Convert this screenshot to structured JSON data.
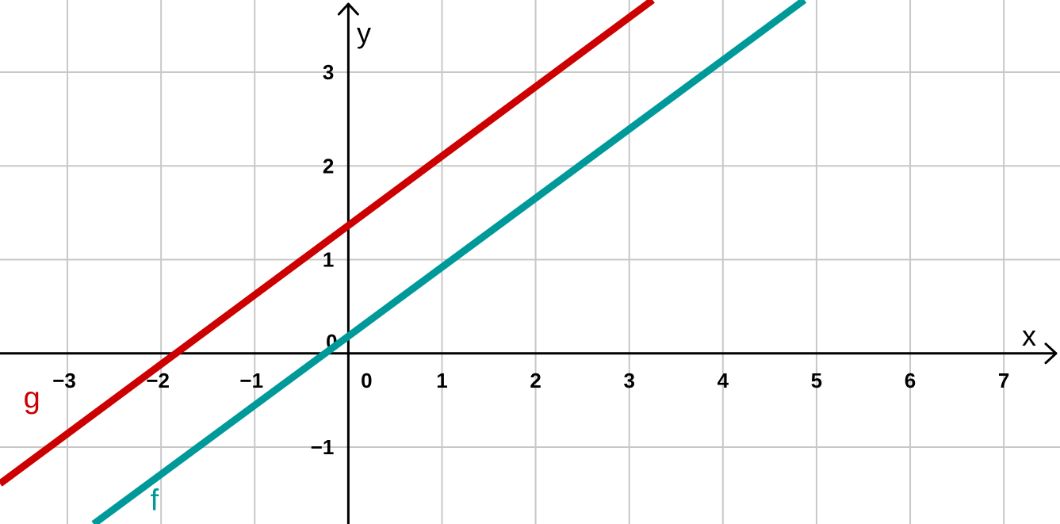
{
  "chart_data": {
    "type": "line",
    "title": "",
    "xlabel": "x",
    "ylabel": "y",
    "xlim": [
      -3.72,
      7.6
    ],
    "ylim": [
      -1.82,
      3.77
    ],
    "grid": true,
    "x_ticks": [
      -3,
      -2,
      -1,
      0,
      1,
      2,
      3,
      4,
      5,
      6,
      7
    ],
    "x_tick_labels": [
      "−3",
      "−2",
      "−1",
      "0",
      "1",
      "2",
      "3",
      "4",
      "5",
      "6",
      "7"
    ],
    "y_ticks": [
      -1,
      0,
      1,
      2,
      3
    ],
    "y_tick_labels": [
      "−1",
      "0",
      "1",
      "2",
      "3"
    ],
    "series": [
      {
        "name": "g",
        "color": "#cc0000",
        "x": [
          -3.72,
          3.25
        ],
        "y": [
          -1.39,
          3.77
        ],
        "label_pos": [
          -3.38,
          -0.58
        ]
      },
      {
        "name": "f",
        "color": "#009999",
        "x": [
          -2.72,
          4.87
        ],
        "y": [
          -1.82,
          3.77
        ],
        "label_pos": [
          -2.07,
          -1.67
        ]
      }
    ]
  }
}
